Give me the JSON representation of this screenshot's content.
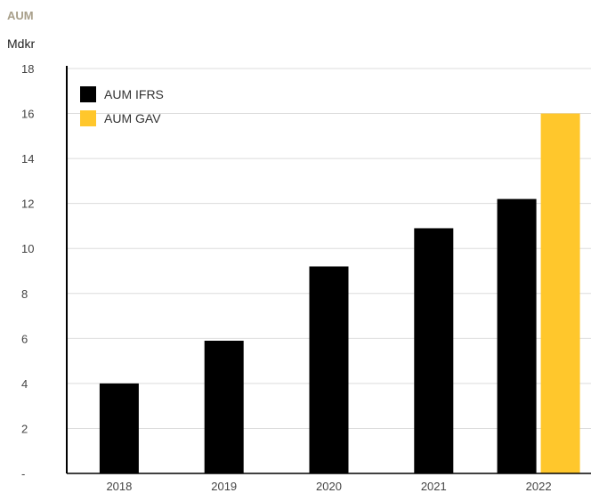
{
  "header": {
    "title": "AUM",
    "unit": "Mdkr"
  },
  "chart_data": {
    "type": "bar",
    "categories": [
      "2018",
      "2019",
      "2020",
      "2021",
      "2022"
    ],
    "series": [
      {
        "name": "AUM IFRS",
        "color": "#000000",
        "values": [
          4.0,
          5.9,
          9.2,
          10.9,
          12.2
        ]
      },
      {
        "name": "AUM GAV",
        "color": "#ffc72c",
        "values": [
          null,
          null,
          null,
          null,
          16.0
        ]
      }
    ],
    "y_ticks": [
      "-",
      "2",
      "4",
      "6",
      "8",
      "10",
      "12",
      "14",
      "16",
      "18"
    ],
    "ylim": [
      0,
      18
    ],
    "grid": true,
    "legend_position": "top-left"
  }
}
